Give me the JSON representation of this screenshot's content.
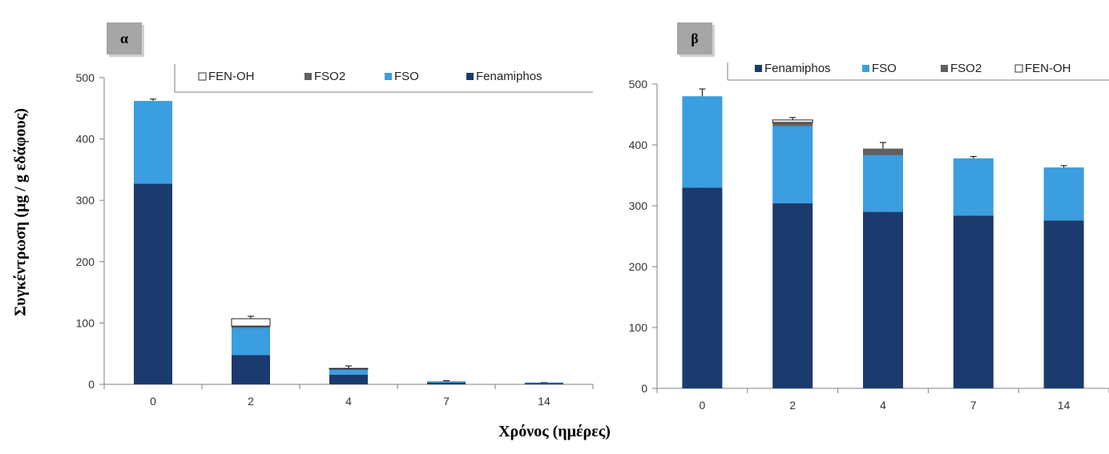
{
  "figure": {
    "ylabel": "Συγκέντρωση (μg / g εδάφους)",
    "xlabel": "Χρόνος (ημέρες)"
  },
  "colors": {
    "Fenamiphos": "#1b3a6e",
    "FSO": "#3a9ee0",
    "FSO2": "#606060",
    "FEN-OH": "#ffffff"
  },
  "chart_data": [
    {
      "type": "bar",
      "stacked": true,
      "panel": "α",
      "title": "",
      "xlabel": "",
      "ylabel": "",
      "categories": [
        "0",
        "2",
        "4",
        "7",
        "14"
      ],
      "ylim": [
        0,
        500
      ],
      "yticks": [
        0,
        100,
        200,
        300,
        400,
        500
      ],
      "grid": false,
      "legend_position": "top-right",
      "legend_order": [
        "FEN-OH",
        "FSO2",
        "FSO",
        "Fenamiphos"
      ],
      "series": [
        {
          "name": "Fenamiphos",
          "values": [
            327,
            48,
            16,
            3,
            2
          ],
          "errors": [
            6,
            8,
            3,
            1,
            1
          ]
        },
        {
          "name": "FSO",
          "values": [
            135,
            44,
            9,
            2,
            1
          ],
          "errors": [
            0,
            0,
            0,
            0,
            0
          ]
        },
        {
          "name": "FSO2",
          "values": [
            0,
            3,
            0,
            0,
            0
          ],
          "errors": [
            0,
            0,
            0,
            0,
            0
          ]
        },
        {
          "name": "FEN-OH",
          "values": [
            0,
            12,
            1,
            0,
            0
          ],
          "errors": [
            3,
            4,
            4,
            1,
            0
          ]
        }
      ]
    },
    {
      "type": "bar",
      "stacked": true,
      "panel": "β",
      "title": "",
      "xlabel": "",
      "ylabel": "",
      "categories": [
        "0",
        "2",
        "4",
        "7",
        "14"
      ],
      "ylim": [
        0,
        500
      ],
      "yticks": [
        0,
        100,
        200,
        300,
        400,
        500
      ],
      "grid": false,
      "legend_position": "top-right",
      "legend_order": [
        "Fenamiphos",
        "FSO",
        "FSO2",
        "FEN-OH"
      ],
      "series": [
        {
          "name": "Fenamiphos",
          "values": [
            330,
            304,
            290,
            284,
            276
          ],
          "errors": [
            10,
            9,
            8,
            7,
            6
          ]
        },
        {
          "name": "FSO",
          "values": [
            150,
            127,
            93,
            94,
            87
          ],
          "errors": [
            0,
            0,
            0,
            0,
            0
          ]
        },
        {
          "name": "FSO2",
          "values": [
            0,
            6,
            11,
            0,
            0
          ],
          "errors": [
            0,
            0,
            0,
            0,
            0
          ]
        },
        {
          "name": "FEN-OH",
          "values": [
            0,
            4,
            0,
            0,
            0
          ],
          "errors": [
            12,
            4,
            10,
            3,
            3
          ]
        }
      ]
    }
  ]
}
